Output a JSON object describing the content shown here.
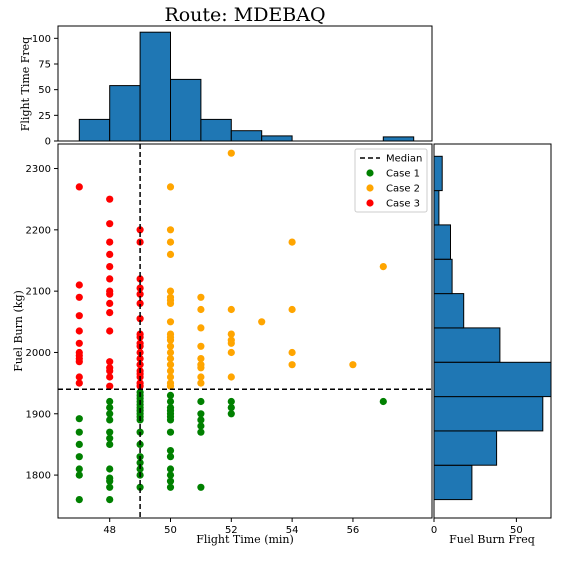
{
  "chart_data": [
    {
      "type": "scatter",
      "title": "Route: MDEBAQ",
      "xlabel": "Flight Time (min)",
      "ylabel": "Fuel Burn (kg)",
      "xlim": [
        46.3,
        58.6
      ],
      "ylim": [
        1730,
        2340
      ],
      "xticks": [
        48,
        50,
        52,
        54,
        56
      ],
      "yticks": [
        1800,
        1900,
        2000,
        2100,
        2200,
        2300
      ],
      "median": {
        "label": "Median",
        "x": 49,
        "y": 1940,
        "color": "#000000",
        "style": "dashed"
      },
      "legend": {
        "position": "top-right"
      },
      "series": [
        {
          "name": "Case 1",
          "color": "#008000",
          "points": [
            [
              47,
              1760
            ],
            [
              47,
              1800
            ],
            [
              47,
              1810
            ],
            [
              47,
              1830
            ],
            [
              47,
              1850
            ],
            [
              47,
              1870
            ],
            [
              47,
              1892
            ],
            [
              48,
              1760
            ],
            [
              48,
              1780
            ],
            [
              48,
              1790
            ],
            [
              48,
              1795
            ],
            [
              48,
              1810
            ],
            [
              48,
              1850
            ],
            [
              48,
              1860
            ],
            [
              48,
              1870
            ],
            [
              48,
              1890
            ],
            [
              48,
              1900
            ],
            [
              48,
              1910
            ],
            [
              48,
              1920
            ],
            [
              49,
              1780
            ],
            [
              49,
              1800
            ],
            [
              49,
              1810
            ],
            [
              49,
              1820
            ],
            [
              49,
              1830
            ],
            [
              49,
              1850
            ],
            [
              49,
              1870
            ],
            [
              49,
              1890
            ],
            [
              49,
              1895
            ],
            [
              49,
              1900
            ],
            [
              49,
              1905
            ],
            [
              49,
              1910
            ],
            [
              49,
              1915
            ],
            [
              49,
              1920
            ],
            [
              49,
              1925
            ],
            [
              49,
              1930
            ],
            [
              49,
              1935
            ],
            [
              50,
              1780
            ],
            [
              50,
              1790
            ],
            [
              50,
              1800
            ],
            [
              50,
              1810
            ],
            [
              50,
              1830
            ],
            [
              50,
              1840
            ],
            [
              50,
              1870
            ],
            [
              50,
              1890
            ],
            [
              50,
              1895
            ],
            [
              50,
              1900
            ],
            [
              50,
              1905
            ],
            [
              50,
              1910
            ],
            [
              50,
              1920
            ],
            [
              50,
              1930
            ],
            [
              51,
              1780
            ],
            [
              51,
              1870
            ],
            [
              51,
              1880
            ],
            [
              51,
              1890
            ],
            [
              51,
              1900
            ],
            [
              51,
              1920
            ],
            [
              52,
              1900
            ],
            [
              52,
              1910
            ],
            [
              52,
              1920
            ],
            [
              57,
              1920
            ]
          ]
        },
        {
          "name": "Case 2",
          "color": "#FFA500",
          "points": [
            [
              50,
              1945
            ],
            [
              50,
              1950
            ],
            [
              50,
              1960
            ],
            [
              50,
              1970
            ],
            [
              50,
              1980
            ],
            [
              50,
              1990
            ],
            [
              50,
              2000
            ],
            [
              50,
              2010
            ],
            [
              50,
              2020
            ],
            [
              50,
              2025
            ],
            [
              50,
              2030
            ],
            [
              50,
              2050
            ],
            [
              50,
              2080
            ],
            [
              50,
              2085
            ],
            [
              50,
              2090
            ],
            [
              50,
              2100
            ],
            [
              50,
              2160
            ],
            [
              50,
              2180
            ],
            [
              50,
              2200
            ],
            [
              50,
              2270
            ],
            [
              51,
              1950
            ],
            [
              51,
              1960
            ],
            [
              51,
              1975
            ],
            [
              51,
              1980
            ],
            [
              51,
              1990
            ],
            [
              51,
              2010
            ],
            [
              51,
              2040
            ],
            [
              51,
              2070
            ],
            [
              51,
              2090
            ],
            [
              52,
              1960
            ],
            [
              52,
              2000
            ],
            [
              52,
              2015
            ],
            [
              52,
              2020
            ],
            [
              52,
              2030
            ],
            [
              52,
              2070
            ],
            [
              52,
              2325
            ],
            [
              53,
              2050
            ],
            [
              54,
              1980
            ],
            [
              54,
              2000
            ],
            [
              54,
              2070
            ],
            [
              54,
              2180
            ],
            [
              56,
              1980
            ],
            [
              57,
              2140
            ]
          ]
        },
        {
          "name": "Case 3",
          "color": "#FF0000",
          "points": [
            [
              47,
              1950
            ],
            [
              47,
              1960
            ],
            [
              47,
              1985
            ],
            [
              47,
              1990
            ],
            [
              47,
              1995
            ],
            [
              47,
              2000
            ],
            [
              47,
              2015
            ],
            [
              47,
              2035
            ],
            [
              47,
              2060
            ],
            [
              47,
              2090
            ],
            [
              47,
              2110
            ],
            [
              47,
              2270
            ],
            [
              48,
              1945
            ],
            [
              48,
              1960
            ],
            [
              48,
              1970
            ],
            [
              48,
              1975
            ],
            [
              48,
              1985
            ],
            [
              48,
              2035
            ],
            [
              48,
              2065
            ],
            [
              48,
              2080
            ],
            [
              48,
              2095
            ],
            [
              48,
              2100
            ],
            [
              48,
              2120
            ],
            [
              48,
              2140
            ],
            [
              48,
              2160
            ],
            [
              48,
              2180
            ],
            [
              48,
              2210
            ],
            [
              48,
              2250
            ],
            [
              49,
              1945
            ],
            [
              49,
              1950
            ],
            [
              49,
              1960
            ],
            [
              49,
              1965
            ],
            [
              49,
              1970
            ],
            [
              49,
              1980
            ],
            [
              49,
              1990
            ],
            [
              49,
              2000
            ],
            [
              49,
              2010
            ],
            [
              49,
              2015
            ],
            [
              49,
              2025
            ],
            [
              49,
              2030
            ],
            [
              49,
              2055
            ],
            [
              49,
              2080
            ],
            [
              49,
              2095
            ],
            [
              49,
              2105
            ],
            [
              49,
              2120
            ],
            [
              49,
              2180
            ],
            [
              49,
              2200
            ]
          ]
        }
      ]
    },
    {
      "type": "bar",
      "ylabel": "Flight Time Freq",
      "color": "#1f77b4",
      "ylim": [
        0,
        112
      ],
      "yticks": [
        0,
        25,
        50,
        75,
        100
      ],
      "bins": [
        {
          "x0": 47,
          "x1": 48,
          "value": 21
        },
        {
          "x0": 48,
          "x1": 49,
          "value": 54
        },
        {
          "x0": 49,
          "x1": 50,
          "value": 106
        },
        {
          "x0": 50,
          "x1": 51,
          "value": 60
        },
        {
          "x0": 51,
          "x1": 52,
          "value": 21
        },
        {
          "x0": 52,
          "x1": 53,
          "value": 10
        },
        {
          "x0": 53,
          "x1": 54,
          "value": 5
        },
        {
          "x0": 57,
          "x1": 58,
          "value": 4
        }
      ]
    },
    {
      "type": "bar",
      "xlabel": "Fuel Burn Freq",
      "color": "#1f77b4",
      "xlim": [
        0,
        71
      ],
      "xticks": [
        0,
        50
      ],
      "bins": [
        {
          "y0": 1760,
          "y1": 1816,
          "value": 23
        },
        {
          "y0": 1816,
          "y1": 1872,
          "value": 38
        },
        {
          "y0": 1872,
          "y1": 1928,
          "value": 66
        },
        {
          "y0": 1928,
          "y1": 1984,
          "value": 71
        },
        {
          "y0": 1984,
          "y1": 2040,
          "value": 40
        },
        {
          "y0": 2040,
          "y1": 2096,
          "value": 18
        },
        {
          "y0": 2096,
          "y1": 2152,
          "value": 11
        },
        {
          "y0": 2152,
          "y1": 2208,
          "value": 10
        },
        {
          "y0": 2208,
          "y1": 2264,
          "value": 3
        },
        {
          "y0": 2264,
          "y1": 2320,
          "value": 5
        }
      ]
    }
  ]
}
